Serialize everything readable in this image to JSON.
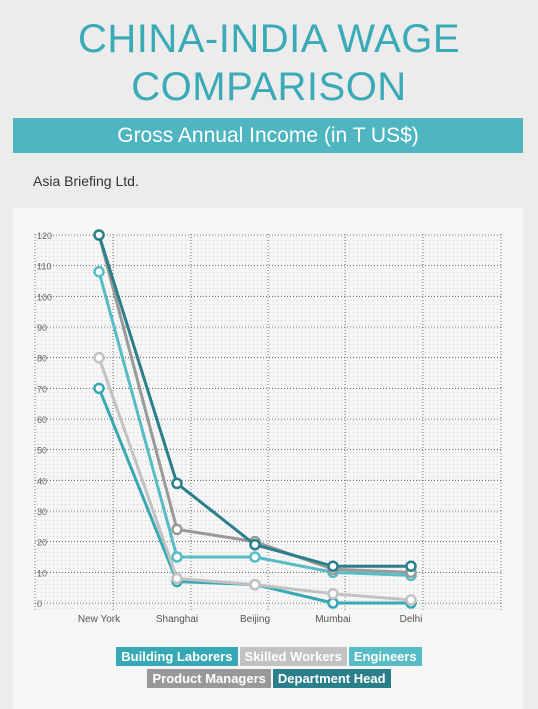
{
  "title_line1": "CHINA-INDIA WAGE",
  "title_line2": "COMPARISON",
  "subtitle": "Gross Annual Income (in T US$)",
  "source": "Asia Briefing Ltd.",
  "chart_data": {
    "type": "line",
    "categories": [
      "New York",
      "Shanghai",
      "Beijing",
      "Mumbai",
      "Delhi"
    ],
    "ylim": [
      0,
      120
    ],
    "yticks": [
      0,
      10,
      20,
      30,
      40,
      50,
      60,
      70,
      80,
      90,
      100,
      110,
      120
    ],
    "grid": true,
    "legend_placement": "bottom",
    "series": [
      {
        "name": "Building Laborers",
        "color": "#37a9b5",
        "values": [
          70,
          7,
          6,
          0,
          0
        ]
      },
      {
        "name": "Skilled Workers",
        "color": "#c2c2c2",
        "values": [
          80,
          8,
          6,
          3,
          1
        ]
      },
      {
        "name": "Engineers",
        "color": "#56bcc6",
        "values": [
          108,
          15,
          15,
          10,
          9
        ]
      },
      {
        "name": "Product Managers",
        "color": "#999999",
        "values": [
          120,
          24,
          20,
          11,
          10
        ]
      },
      {
        "name": "Department Head",
        "color": "#2a7f8a",
        "values": [
          120,
          39,
          19,
          12,
          12
        ]
      }
    ]
  }
}
